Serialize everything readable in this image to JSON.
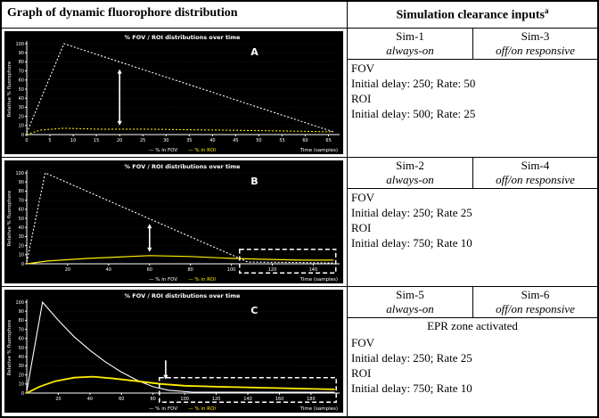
{
  "header": {
    "left_title": "Graph of dynamic fluorophore distribution",
    "right_title": "Simulation clearance inputs",
    "right_title_sup": "a"
  },
  "colors": {
    "plot_bg": "#000000",
    "fov_line": "#ffffff",
    "roi_line": "#ffee00"
  },
  "chart_data": [
    {
      "type": "line",
      "panel_label": "A",
      "title": "% FOV / ROI distributions over time",
      "xlabel": "Time (samples)",
      "ylabel": "Relative % fluorophore",
      "xlim": [
        0,
        67
      ],
      "ylim": [
        0,
        100
      ],
      "xticks": [
        0,
        5,
        10,
        15,
        20,
        25,
        30,
        35,
        40,
        45,
        50,
        55,
        60,
        65
      ],
      "yticks": [
        0,
        10,
        20,
        30,
        40,
        50,
        60,
        70,
        80,
        90,
        100
      ],
      "legend": [
        {
          "label": "% in FOV",
          "color": "#ffffff"
        },
        {
          "label": "% in ROI",
          "color": "#ffee00"
        }
      ],
      "series": [
        {
          "name": "% in FOV",
          "color": "#ffffff",
          "dash": "2,2",
          "width": 1.1,
          "points": [
            [
              0,
              2
            ],
            [
              8,
              100
            ],
            [
              66,
              3
            ]
          ]
        },
        {
          "name": "% in ROI",
          "color": "#ffee00",
          "dash": "2,2",
          "width": 1.1,
          "points": [
            [
              0,
              0
            ],
            [
              3,
              5
            ],
            [
              8,
              7
            ],
            [
              15,
              6
            ],
            [
              25,
              6
            ],
            [
              40,
              5
            ],
            [
              55,
              4
            ],
            [
              66,
              3
            ]
          ]
        }
      ],
      "annotations": [
        {
          "type": "varrow",
          "x": 20,
          "y1": 10,
          "y2": 72
        }
      ]
    },
    {
      "type": "line",
      "panel_label": "B",
      "title": "% FOV / ROI distributions over time",
      "xlabel": "Time (samples)",
      "ylabel": "Relative % fluorophore",
      "xlim": [
        0,
        152
      ],
      "ylim": [
        0,
        100
      ],
      "xticks": [
        20,
        40,
        60,
        80,
        100,
        120,
        140
      ],
      "yticks": [
        0,
        10,
        20,
        30,
        40,
        50,
        60,
        70,
        80,
        90,
        100
      ],
      "legend": [
        {
          "label": "% in FOV",
          "color": "#ffffff"
        },
        {
          "label": "% in ROI",
          "color": "#ffee00"
        }
      ],
      "series": [
        {
          "name": "% in FOV",
          "color": "#ffffff",
          "dash": "2,2",
          "width": 1.1,
          "points": [
            [
              0,
              2
            ],
            [
              9,
              100
            ],
            [
              108,
              2
            ],
            [
              150,
              1
            ]
          ]
        },
        {
          "name": "% in ROI",
          "color": "#ffee00",
          "width": 1.2,
          "points": [
            [
              0,
              0
            ],
            [
              10,
              3
            ],
            [
              30,
              6
            ],
            [
              60,
              9
            ],
            [
              80,
              8
            ],
            [
              100,
              6
            ],
            [
              115,
              5
            ],
            [
              135,
              4
            ],
            [
              150,
              4
            ]
          ]
        }
      ],
      "annotations": [
        {
          "type": "varrow",
          "x": 60,
          "y1": 13,
          "y2": 44
        },
        {
          "type": "dashrect",
          "x0": 104,
          "x1": 151,
          "y0": -10,
          "y1": 16
        }
      ]
    },
    {
      "type": "line",
      "panel_label": "C",
      "title": "% FOV / ROI distributions over time",
      "xlabel": "Time (samples)",
      "ylabel": "Relative % fluorophore",
      "xlim": [
        0,
        197
      ],
      "ylim": [
        0,
        100
      ],
      "xticks": [
        20,
        40,
        60,
        80,
        100,
        120,
        140,
        160,
        180
      ],
      "yticks": [
        0,
        10,
        20,
        30,
        40,
        50,
        60,
        70,
        80,
        90,
        100
      ],
      "legend": [
        {
          "label": "% in FOV",
          "color": "#ffffff"
        },
        {
          "label": "% in ROI",
          "color": "#ffee00"
        }
      ],
      "series": [
        {
          "name": "% in FOV",
          "color": "#ffffff",
          "width": 1.1,
          "points": [
            [
              0,
              2
            ],
            [
              10,
              100
            ],
            [
              20,
              80
            ],
            [
              30,
              62
            ],
            [
              40,
              47
            ],
            [
              50,
              34
            ],
            [
              60,
              23
            ],
            [
              70,
              14
            ],
            [
              80,
              7
            ],
            [
              90,
              3
            ],
            [
              105,
              1
            ],
            [
              195,
              1
            ]
          ]
        },
        {
          "name": "% in ROI",
          "color": "#ffee00",
          "width": 1.8,
          "points": [
            [
              0,
              0
            ],
            [
              8,
              7
            ],
            [
              18,
              13
            ],
            [
              30,
              17
            ],
            [
              42,
              18
            ],
            [
              55,
              16
            ],
            [
              70,
              13
            ],
            [
              85,
              10
            ],
            [
              100,
              8
            ],
            [
              120,
              7
            ],
            [
              145,
              6
            ],
            [
              170,
              5
            ],
            [
              195,
              4
            ]
          ]
        }
      ],
      "annotations": [
        {
          "type": "darrow",
          "x": 88,
          "y1": 36,
          "y2": 15
        },
        {
          "type": "dashrect",
          "x0": 84,
          "x1": 196,
          "y0": -10,
          "y1": 17
        }
      ]
    }
  ],
  "sim_table": {
    "blocks": [
      {
        "cols": [
          {
            "sim": "Sim-1",
            "mode": "always-on"
          },
          {
            "sim": "Sim-3",
            "mode": "off/on responsive"
          }
        ],
        "lines": [
          "FOV",
          "Initial delay: 250; Rate: 50",
          "ROI",
          "Initial delay: 500; Rate: 25"
        ]
      },
      {
        "cols": [
          {
            "sim": "Sim-2",
            "mode": "always-on"
          },
          {
            "sim": "Sim-4",
            "mode": "off/on responsive"
          }
        ],
        "lines": [
          "FOV",
          "Initial delay: 250; Rate 25",
          "ROI",
          "Initial delay: 750; Rate 10"
        ]
      },
      {
        "cols": [
          {
            "sim": "Sim-5",
            "mode": "always-on"
          },
          {
            "sim": "Sim-6",
            "mode": "off/on responsive"
          }
        ],
        "note": "EPR zone activated",
        "lines": [
          "FOV",
          "Initial delay: 250; Rate 25",
          "ROI",
          "Initial delay: 750; Rate 10"
        ]
      }
    ]
  }
}
